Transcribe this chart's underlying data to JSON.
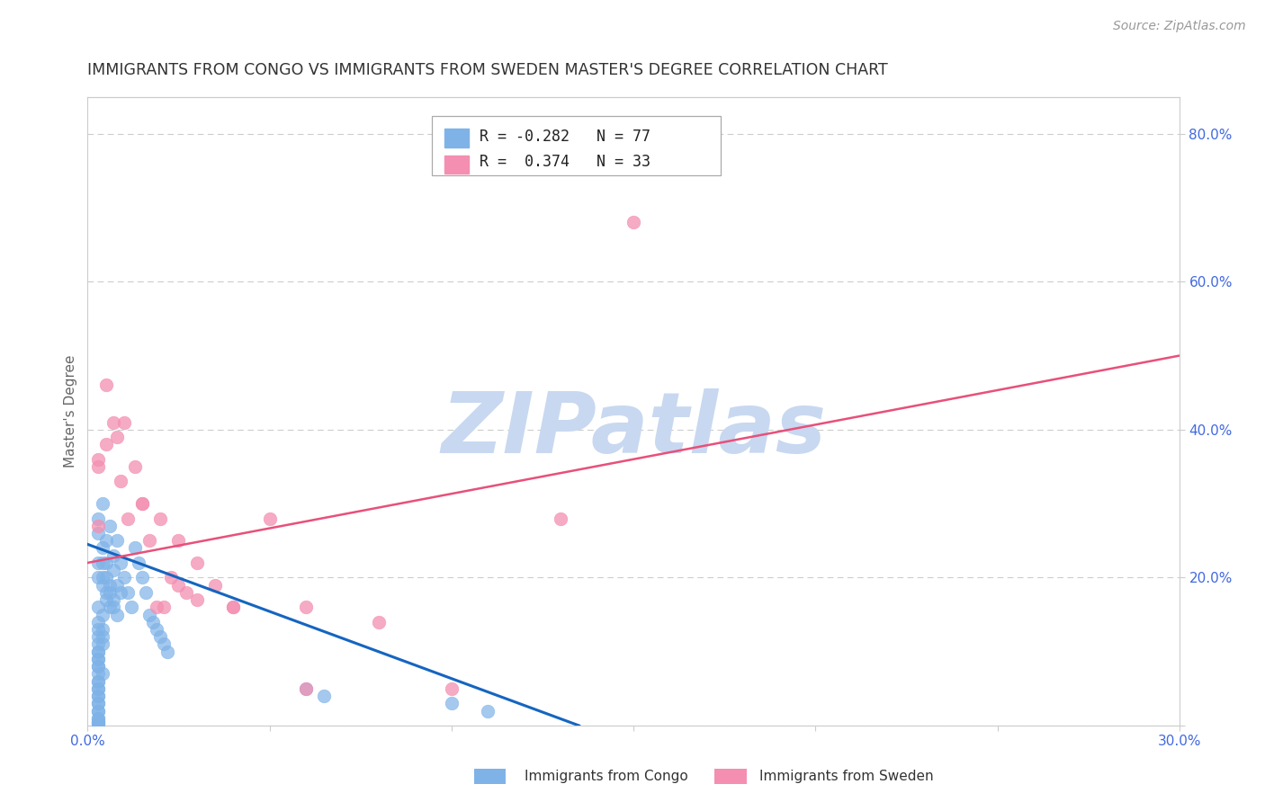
{
  "title": "IMMIGRANTS FROM CONGO VS IMMIGRANTS FROM SWEDEN MASTER'S DEGREE CORRELATION CHART",
  "source": "Source: ZipAtlas.com",
  "ylabel": "Master's Degree",
  "xlim": [
    0.0,
    0.3
  ],
  "ylim": [
    0.0,
    0.85
  ],
  "xticks": [
    0.0,
    0.05,
    0.1,
    0.15,
    0.2,
    0.25,
    0.3
  ],
  "xticklabels": [
    "0.0%",
    "",
    "",
    "",
    "",
    "",
    "30.0%"
  ],
  "yticks_right": [
    0.0,
    0.2,
    0.4,
    0.6,
    0.8
  ],
  "yticklabels_right": [
    "",
    "20.0%",
    "40.0%",
    "60.0%",
    "80.0%"
  ],
  "congo_R": -0.282,
  "congo_N": 77,
  "sweden_R": 0.374,
  "sweden_N": 33,
  "congo_color": "#7FB3E8",
  "sweden_color": "#F48FB1",
  "congo_line_color": "#1565C0",
  "sweden_line_color": "#E8507A",
  "watermark": "ZIPatlas",
  "watermark_color": "#C8D8F0",
  "background_color": "#ffffff",
  "grid_color": "#cccccc",
  "tick_label_color": "#4169E1",
  "title_color": "#333333",
  "legend_label_congo": "Immigrants from Congo",
  "legend_label_sweden": "Immigrants from Sweden",
  "congo_x": [
    0.003,
    0.004,
    0.005,
    0.006,
    0.007,
    0.008,
    0.009,
    0.01,
    0.011,
    0.012,
    0.013,
    0.014,
    0.015,
    0.016,
    0.017,
    0.018,
    0.019,
    0.02,
    0.021,
    0.022,
    0.003,
    0.004,
    0.005,
    0.006,
    0.007,
    0.008,
    0.003,
    0.004,
    0.005,
    0.006,
    0.003,
    0.004,
    0.005,
    0.007,
    0.008,
    0.009,
    0.003,
    0.004,
    0.003,
    0.004,
    0.003,
    0.003,
    0.003,
    0.003,
    0.003,
    0.003,
    0.003,
    0.004,
    0.005,
    0.006,
    0.007,
    0.003,
    0.004,
    0.003,
    0.003,
    0.004,
    0.003,
    0.003,
    0.003,
    0.003,
    0.003,
    0.003,
    0.003,
    0.004,
    0.003,
    0.003,
    0.003,
    0.003,
    0.003,
    0.003,
    0.003,
    0.003,
    0.003,
    0.06,
    0.065,
    0.1,
    0.11
  ],
  "congo_y": [
    0.28,
    0.3,
    0.25,
    0.27,
    0.23,
    0.25,
    0.22,
    0.2,
    0.18,
    0.16,
    0.24,
    0.22,
    0.2,
    0.18,
    0.15,
    0.14,
    0.13,
    0.12,
    0.11,
    0.1,
    0.26,
    0.24,
    0.22,
    0.19,
    0.17,
    0.15,
    0.22,
    0.2,
    0.18,
    0.16,
    0.2,
    0.19,
    0.17,
    0.21,
    0.19,
    0.18,
    0.16,
    0.15,
    0.14,
    0.13,
    0.12,
    0.11,
    0.1,
    0.09,
    0.08,
    0.07,
    0.06,
    0.22,
    0.2,
    0.18,
    0.16,
    0.13,
    0.11,
    0.09,
    0.08,
    0.07,
    0.06,
    0.05,
    0.04,
    0.03,
    0.02,
    0.01,
    0.005,
    0.12,
    0.1,
    0.05,
    0.04,
    0.03,
    0.02,
    0.01,
    0.005,
    0.003,
    0.002,
    0.05,
    0.04,
    0.03,
    0.02
  ],
  "sweden_x": [
    0.003,
    0.005,
    0.007,
    0.009,
    0.011,
    0.013,
    0.015,
    0.017,
    0.019,
    0.021,
    0.023,
    0.025,
    0.027,
    0.03,
    0.035,
    0.04,
    0.05,
    0.06,
    0.08,
    0.003,
    0.005,
    0.008,
    0.01,
    0.015,
    0.02,
    0.025,
    0.03,
    0.04,
    0.06,
    0.15,
    0.13,
    0.003,
    0.1
  ],
  "sweden_y": [
    0.27,
    0.38,
    0.41,
    0.33,
    0.28,
    0.35,
    0.3,
    0.25,
    0.16,
    0.16,
    0.2,
    0.19,
    0.18,
    0.22,
    0.19,
    0.16,
    0.28,
    0.16,
    0.14,
    0.35,
    0.46,
    0.39,
    0.41,
    0.3,
    0.28,
    0.25,
    0.17,
    0.16,
    0.05,
    0.68,
    0.28,
    0.36,
    0.05
  ],
  "congo_trend_x": [
    0.0,
    0.135
  ],
  "congo_trend_y": [
    0.245,
    0.0
  ],
  "sweden_trend_x": [
    0.0,
    0.3
  ],
  "sweden_trend_y": [
    0.22,
    0.5
  ]
}
